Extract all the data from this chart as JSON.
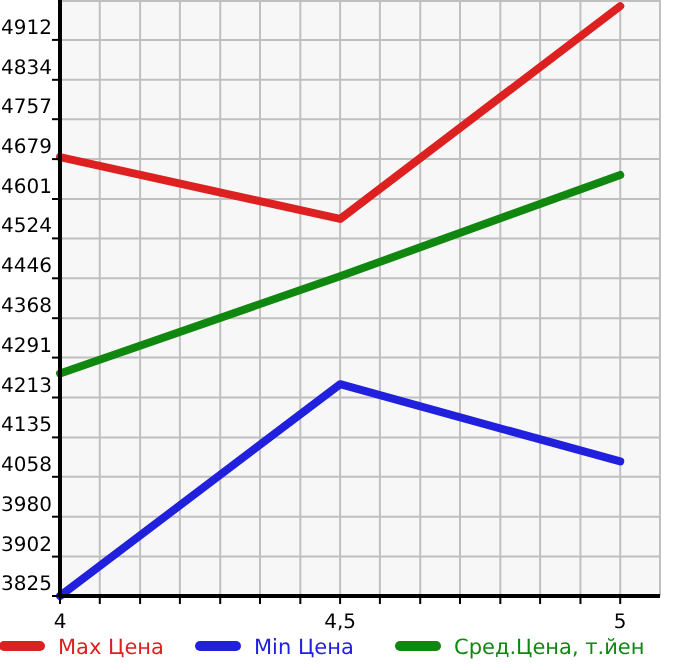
{
  "chart_data": {
    "type": "line",
    "x": [
      4,
      4.5,
      5
    ],
    "series": [
      {
        "name": "Max Цена",
        "color": "#dd2020",
        "values": [
          4683,
          4562,
          4978
        ]
      },
      {
        "name": "Min Цена",
        "color": "#2020dd",
        "values": [
          3825,
          4239,
          4088
        ]
      },
      {
        "name": "Сред.Цена, т.йен",
        "color": "#108810",
        "values": [
          4260,
          4450,
          4648
        ]
      }
    ],
    "xlim": [
      4,
      5.071
    ],
    "xticks": [
      4,
      {
        "value": 4.071,
        "label": null
      },
      {
        "value": 4.143,
        "label": null
      },
      {
        "value": 4.214,
        "label": null
      },
      {
        "value": 4.286,
        "label": null
      },
      {
        "value": 4.357,
        "label": null
      },
      {
        "value": 4.429,
        "label": null
      },
      {
        "value": 4.5,
        "label": "4,5"
      },
      {
        "value": 4.571,
        "label": null
      },
      {
        "value": 4.643,
        "label": null
      },
      {
        "value": 4.714,
        "label": null
      },
      {
        "value": 4.786,
        "label": null
      },
      {
        "value": 4.857,
        "label": null
      },
      {
        "value": 4.929,
        "label": null
      },
      5
    ],
    "ylim": [
      3825,
      4990
    ],
    "yticks": [
      3825,
      3902,
      3980,
      4058,
      4135,
      4213,
      4291,
      4368,
      4446,
      4524,
      4601,
      4679,
      4757,
      4834,
      4912
    ],
    "grid": true,
    "legend": "bottom",
    "marker": "none",
    "line_style": "solid"
  }
}
